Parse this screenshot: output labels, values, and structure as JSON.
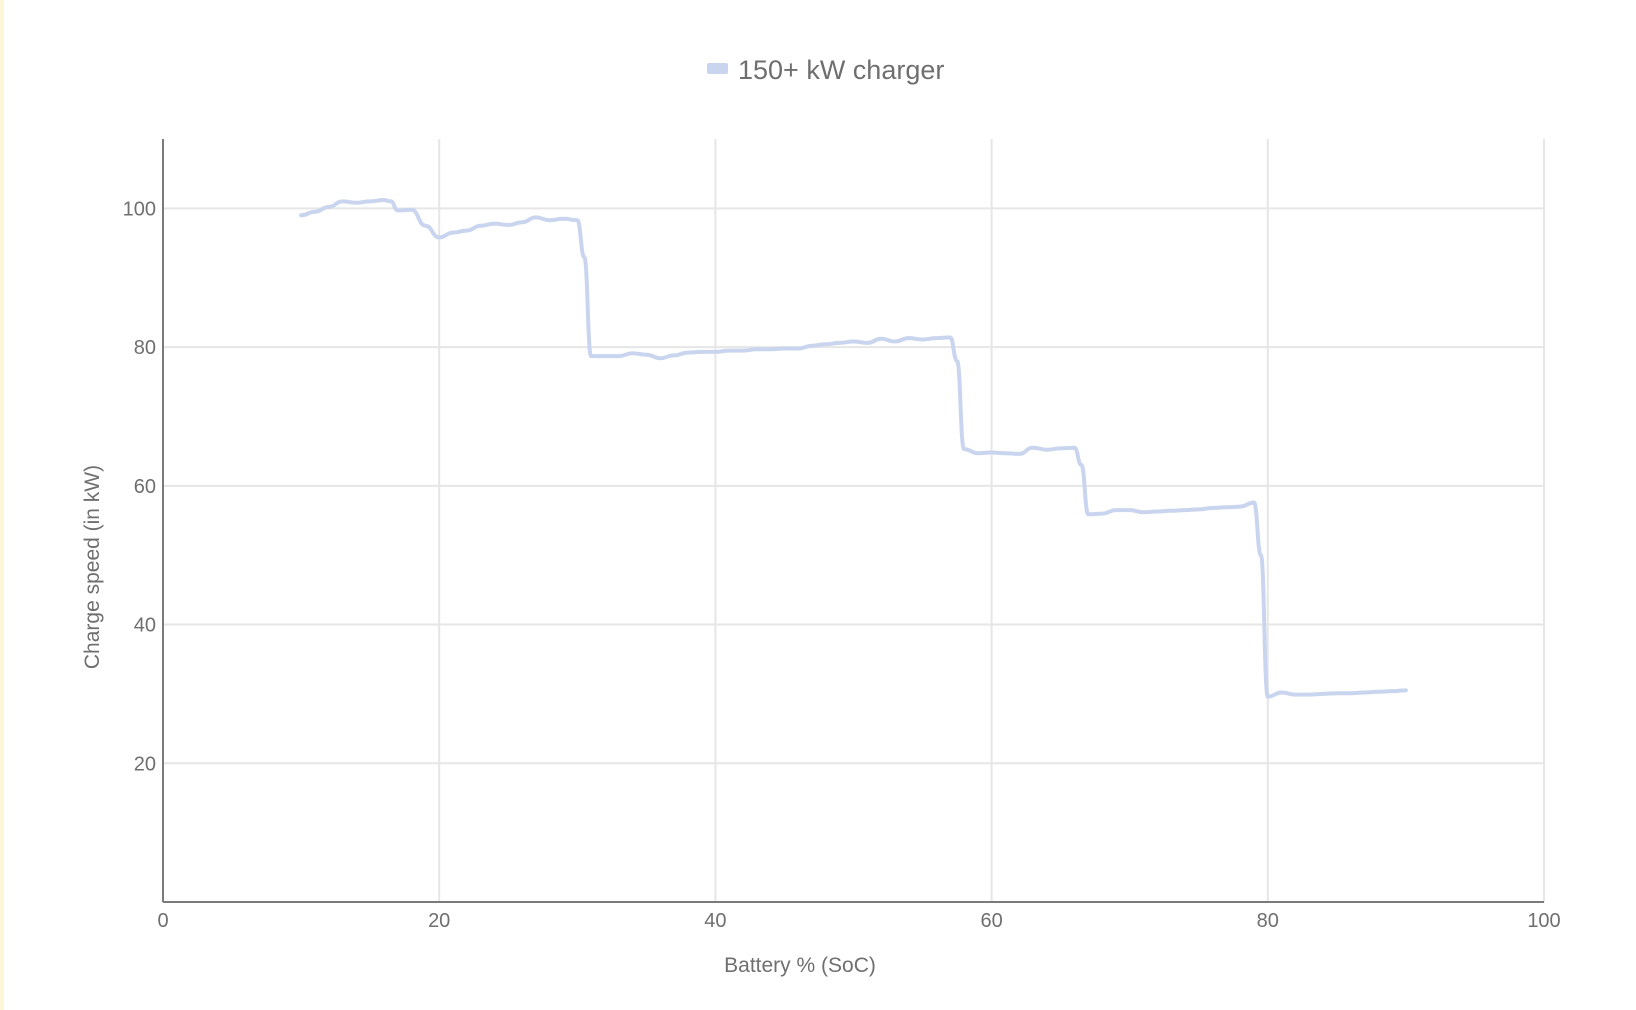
{
  "chart_data": {
    "type": "line",
    "title": "",
    "xlabel": "Battery % (SoC)",
    "ylabel": "Charge speed (in kW)",
    "xlim": [
      0,
      100
    ],
    "ylim": [
      0,
      110
    ],
    "xticks": [
      0,
      20,
      40,
      60,
      80,
      100
    ],
    "yticks": [
      20,
      40,
      60,
      80,
      100
    ],
    "grid": true,
    "legend_position": "top-center",
    "series": [
      {
        "name": "150+ kW charger",
        "color": "#c9d5ee",
        "x": [
          10,
          11,
          12,
          13,
          14,
          15,
          16,
          16.5,
          17,
          18,
          19,
          20,
          21,
          22,
          23,
          24,
          25,
          26,
          27,
          28,
          29,
          30,
          30.5,
          31,
          32,
          33,
          34,
          35,
          36,
          37,
          38,
          39,
          40,
          41,
          42,
          43,
          44,
          45,
          46,
          47,
          48,
          49,
          50,
          51,
          52,
          53,
          54,
          55,
          56,
          57,
          57.5,
          58,
          59,
          60,
          61,
          62,
          63,
          64,
          65,
          66,
          66.5,
          67,
          68,
          69,
          70,
          71,
          72,
          73,
          74,
          75,
          76,
          77,
          78,
          79,
          79.5,
          80,
          81,
          82,
          83,
          84,
          85,
          86,
          87,
          88,
          89,
          90
        ],
        "values": [
          99.0,
          99.5,
          100.2,
          101.0,
          100.8,
          101.0,
          101.2,
          101.0,
          99.7,
          99.8,
          97.5,
          95.8,
          96.5,
          96.8,
          97.5,
          97.8,
          97.6,
          98.0,
          98.7,
          98.3,
          98.5,
          98.3,
          93.0,
          78.7,
          78.7,
          78.7,
          79.1,
          78.9,
          78.4,
          78.8,
          79.2,
          79.3,
          79.3,
          79.5,
          79.5,
          79.7,
          79.7,
          79.8,
          79.8,
          80.2,
          80.4,
          80.6,
          80.8,
          80.6,
          81.2,
          80.8,
          81.3,
          81.1,
          81.3,
          81.4,
          78.0,
          65.3,
          64.7,
          64.8,
          64.7,
          64.6,
          65.5,
          65.2,
          65.4,
          65.5,
          63.0,
          55.9,
          56.0,
          56.5,
          56.5,
          56.2,
          56.3,
          56.4,
          56.5,
          56.6,
          56.8,
          56.9,
          57.0,
          57.6,
          50.0,
          29.6,
          30.2,
          29.9,
          29.9,
          30.0,
          30.1,
          30.1,
          30.2,
          30.3,
          30.4,
          30.5
        ]
      }
    ]
  }
}
